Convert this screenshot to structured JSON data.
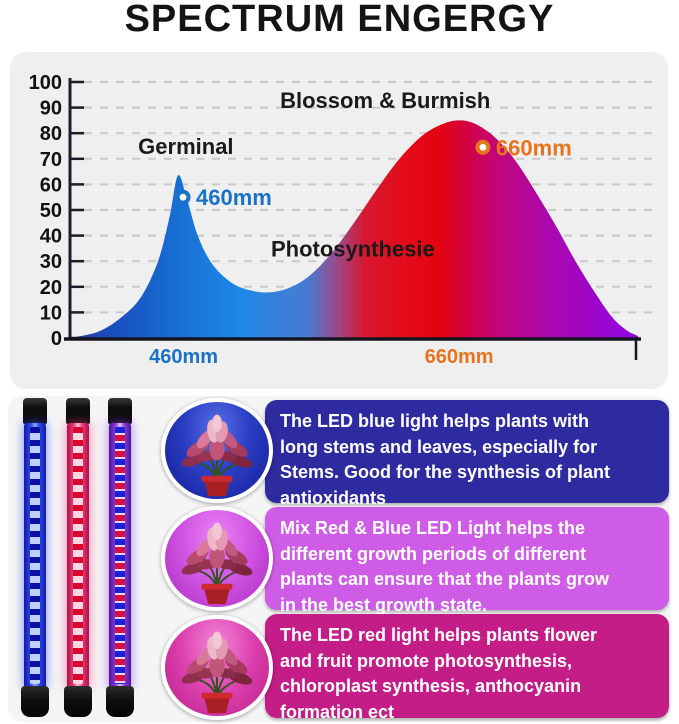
{
  "title": "SPECTRUM ENGERGY",
  "chart_data": {
    "type": "area",
    "title": "SPECTRUM ENGERGY",
    "xlabel": "",
    "ylabel": "",
    "ylim": [
      0,
      100
    ],
    "yticks": [
      0,
      10,
      20,
      30,
      40,
      50,
      60,
      70,
      80,
      90,
      100
    ],
    "grid": "horizontal-dashed",
    "legend": "none",
    "annotations": [
      {
        "text": "Germinal",
        "x_pct": 20.4,
        "value": 75,
        "color": "#1a1a1a"
      },
      {
        "text": "Blossom & Burmish",
        "x_pct": 55.5,
        "value": 93,
        "color": "#1a1a1a"
      },
      {
        "text": "Photosynthesie",
        "x_pct": 49.8,
        "value": 35,
        "color": "#1a1a1a"
      }
    ],
    "peak_markers": [
      {
        "label": "460mm",
        "x_pct": 19.9,
        "value": 55,
        "color": "#1a72c8"
      },
      {
        "label": "660mm",
        "x_pct": 72.7,
        "value": 74.5,
        "color": "#e8731e"
      }
    ],
    "x_axis_labels": [
      {
        "text": "460mm",
        "x_pct": 20.0,
        "color": "#1a72c8"
      },
      {
        "text": "660mm",
        "x_pct": 68.5,
        "color": "#e8731e"
      }
    ],
    "series": [
      {
        "name": "spectrum energy",
        "points": [
          [
            0,
            0
          ],
          [
            5,
            2.5
          ],
          [
            9,
            8
          ],
          [
            12.5,
            16
          ],
          [
            15.5,
            30
          ],
          [
            17.5,
            47
          ],
          [
            19,
            63.5
          ],
          [
            20.5,
            55
          ],
          [
            22.5,
            40
          ],
          [
            25,
            29
          ],
          [
            28.5,
            21.5
          ],
          [
            32,
            18.5
          ],
          [
            35,
            17.8
          ],
          [
            38.5,
            19.5
          ],
          [
            42,
            24
          ],
          [
            46,
            33
          ],
          [
            50,
            45
          ],
          [
            54,
            58
          ],
          [
            58,
            70
          ],
          [
            62,
            79
          ],
          [
            65.5,
            83.5
          ],
          [
            68.5,
            85
          ],
          [
            71.5,
            83.5
          ],
          [
            75,
            78
          ],
          [
            78.5,
            69
          ],
          [
            82,
            57
          ],
          [
            85.5,
            44
          ],
          [
            89,
            30
          ],
          [
            92.5,
            17.5
          ],
          [
            95.5,
            8
          ],
          [
            98,
            3
          ],
          [
            100,
            0.8
          ]
        ]
      }
    ],
    "fill_gradient_stops": [
      [
        0,
        "#2b3a9e"
      ],
      [
        0.08,
        "#1a4fc0"
      ],
      [
        0.19,
        "#176fd2"
      ],
      [
        0.3,
        "#1e88e8"
      ],
      [
        0.42,
        "#4a7ad0"
      ],
      [
        0.47,
        "#9a4a88"
      ],
      [
        0.52,
        "#d81830"
      ],
      [
        0.6,
        "#e40a18"
      ],
      [
        0.65,
        "#e3030f"
      ],
      [
        0.7,
        "#d10345"
      ],
      [
        0.76,
        "#c1057f"
      ],
      [
        0.84,
        "#ac07ad"
      ],
      [
        0.93,
        "#9c06cc"
      ],
      [
        1,
        "#8f05e5"
      ]
    ]
  },
  "cards": [
    {
      "icon": "plant-under-blue-light-photo",
      "bg": "#2e2a9f",
      "text": "The LED blue light helps plants with\nlong stems and leaves, especially for\nStems. Good for the synthesis of plant\nantioxidants"
    },
    {
      "icon": "plant-under-mixed-light-photo",
      "bg": "#cf5ce6",
      "text": "Mix Red & Blue LED Light helps the\ndifferent growth periods of different\nplants can ensure that the plants grow\nin the best growth state."
    },
    {
      "icon": "plant-under-red-light-photo",
      "bg": "#c41d88",
      "text": "The LED red light helps plants flower\nand fruit promote photosynthesis,\nchloroplast synthesis, anthocyanin\nformation ect"
    }
  ],
  "tubes": [
    "blue-led-tube",
    "red-led-tube",
    "mixed-red-blue-led-tube"
  ]
}
